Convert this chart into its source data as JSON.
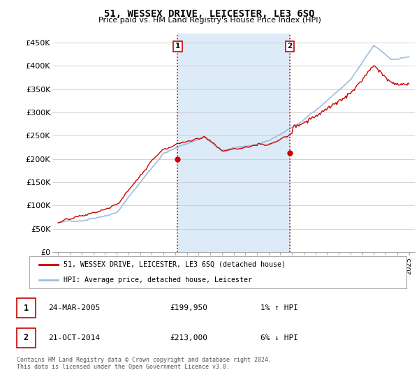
{
  "title": "51, WESSEX DRIVE, LEICESTER, LE3 6SQ",
  "subtitle": "Price paid vs. HM Land Registry's House Price Index (HPI)",
  "yticks": [
    0,
    50000,
    100000,
    150000,
    200000,
    250000,
    300000,
    350000,
    400000,
    450000
  ],
  "ytick_labels": [
    "£0",
    "£50K",
    "£100K",
    "£150K",
    "£200K",
    "£250K",
    "£300K",
    "£350K",
    "£400K",
    "£450K"
  ],
  "xlim_start": 1994.5,
  "xlim_end": 2025.5,
  "ylim_min": 0,
  "ylim_max": 470000,
  "hpi_color": "#9bbfe0",
  "hpi_fill_color": "#ddeaf7",
  "price_color": "#cc0000",
  "sale1_x": 2005.22,
  "sale1_y": 199950,
  "sale2_x": 2014.8,
  "sale2_y": 213000,
  "dashed_line_color": "#cc0000",
  "legend_label_red": "51, WESSEX DRIVE, LEICESTER, LE3 6SQ (detached house)",
  "legend_label_blue": "HPI: Average price, detached house, Leicester",
  "table_row1": [
    "1",
    "24-MAR-2005",
    "£199,950",
    "1% ↑ HPI"
  ],
  "table_row2": [
    "2",
    "21-OCT-2014",
    "£213,000",
    "6% ↓ HPI"
  ],
  "footnote": "Contains HM Land Registry data © Crown copyright and database right 2024.\nThis data is licensed under the Open Government Licence v3.0.",
  "background_color": "#ffffff",
  "grid_color": "#cccccc",
  "xtick_years": [
    1995,
    1996,
    1997,
    1998,
    1999,
    2000,
    2001,
    2002,
    2003,
    2004,
    2005,
    2006,
    2007,
    2008,
    2009,
    2010,
    2011,
    2012,
    2013,
    2014,
    2015,
    2016,
    2017,
    2018,
    2019,
    2020,
    2021,
    2022,
    2023,
    2024,
    2025
  ]
}
